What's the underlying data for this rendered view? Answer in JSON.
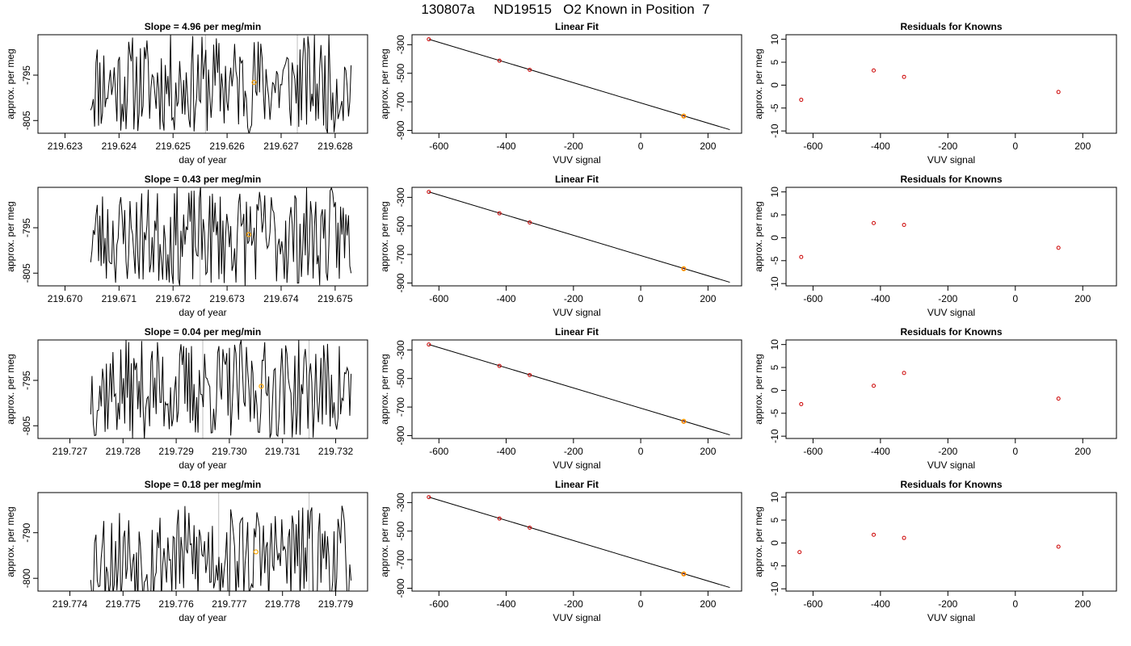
{
  "figure_title": "130807a     ND19515   O2 Known in Position  7",
  "colors": {
    "trace": "#000000",
    "marker_orange": "#ffa500",
    "marker_red": "#cc0000",
    "vline": "#bebebe"
  },
  "chart_data": [
    {
      "type": "line",
      "title": "Slope =  4.96  per meg/min",
      "xlabel": "day of year",
      "ylabel": "approx. per meg",
      "xticks": [
        "219.623",
        "219.624",
        "219.625",
        "219.626",
        "219.627",
        "219.628"
      ],
      "yticks": [
        "-795",
        "-805"
      ],
      "xlim": [
        219.6225,
        219.6286
      ],
      "ylim": [
        -807.8,
        -786.1
      ],
      "vlines": [
        219.6256,
        219.6273
      ],
      "marker": {
        "x": 219.6265,
        "y": -796.6
      },
      "seed": 11,
      "trace_mean": -797
    },
    {
      "type": "line",
      "title": "Linear Fit",
      "xlabel": "VUV signal",
      "ylabel": "approx. per meg",
      "xticks": [
        "-600",
        "-400",
        "-200",
        "0",
        "200"
      ],
      "yticks": [
        "-300",
        "-500",
        "-700",
        "-900"
      ],
      "xlim": [
        -680,
        300
      ],
      "ylim": [
        -920,
        -230
      ],
      "line": {
        "x0": -630,
        "y0": -262,
        "x1": 265,
        "y1": -895
      },
      "points": [
        {
          "x": -630,
          "y": -262
        },
        {
          "x": -420,
          "y": -412
        },
        {
          "x": -330,
          "y": -476
        },
        {
          "x": 128,
          "y": -800
        }
      ],
      "highlight": {
        "x": 128,
        "y": -800
      }
    },
    {
      "type": "scatter",
      "title": "Residuals for Knowns",
      "xlabel": "VUV signal",
      "ylabel": "approx. per meg",
      "xticks": [
        "-600",
        "-400",
        "-200",
        "0",
        "200"
      ],
      "yticks": [
        "10",
        "5",
        "0",
        "-5",
        "-10"
      ],
      "xlim": [
        -680,
        300
      ],
      "ylim": [
        -10.5,
        11
      ],
      "points": [
        {
          "x": -635,
          "y": -3.2
        },
        {
          "x": -420,
          "y": 3.2
        },
        {
          "x": -330,
          "y": 1.8
        },
        {
          "x": 128,
          "y": -1.5
        }
      ]
    },
    {
      "type": "line",
      "title": "Slope =  0.43  per meg/min",
      "xlabel": "day of year",
      "ylabel": "approx. per meg",
      "xticks": [
        "219.670",
        "219.671",
        "219.672",
        "219.673",
        "219.674",
        "219.675"
      ],
      "yticks": [
        "-795",
        "-805"
      ],
      "xlim": [
        219.6695,
        219.6756
      ],
      "ylim": [
        -807.8,
        -786.1
      ],
      "vlines": [
        219.6725
      ],
      "marker": {
        "x": 219.6734,
        "y": -796.5
      },
      "seed": 23,
      "trace_mean": -797
    },
    {
      "type": "line",
      "title": "Linear Fit",
      "xlabel": "VUV signal",
      "ylabel": "approx. per meg",
      "xticks": [
        "-600",
        "-400",
        "-200",
        "0",
        "200"
      ],
      "yticks": [
        "-300",
        "-500",
        "-700",
        "-900"
      ],
      "xlim": [
        -680,
        300
      ],
      "ylim": [
        -920,
        -230
      ],
      "line": {
        "x0": -630,
        "y0": -262,
        "x1": 265,
        "y1": -895
      },
      "points": [
        {
          "x": -630,
          "y": -262
        },
        {
          "x": -420,
          "y": -412
        },
        {
          "x": -330,
          "y": -476
        },
        {
          "x": 128,
          "y": -800
        }
      ],
      "highlight": {
        "x": 128,
        "y": -800
      }
    },
    {
      "type": "scatter",
      "title": "Residuals for Knowns",
      "xlabel": "VUV signal",
      "ylabel": "approx. per meg",
      "xticks": [
        "-600",
        "-400",
        "-200",
        "0",
        "200"
      ],
      "yticks": [
        "10",
        "5",
        "0",
        "-5",
        "-10"
      ],
      "xlim": [
        -680,
        300
      ],
      "ylim": [
        -10.5,
        11
      ],
      "points": [
        {
          "x": -635,
          "y": -4.2
        },
        {
          "x": -420,
          "y": 3.2
        },
        {
          "x": -330,
          "y": 2.8
        },
        {
          "x": 128,
          "y": -2.2
        }
      ]
    },
    {
      "type": "line",
      "title": "Slope =  0.04  per meg/min",
      "xlabel": "day of year",
      "ylabel": "approx. per meg",
      "xticks": [
        "219.727",
        "219.728",
        "219.729",
        "219.730",
        "219.731",
        "219.732"
      ],
      "yticks": [
        "-795",
        "-805"
      ],
      "xlim": [
        219.7264,
        219.7326
      ],
      "ylim": [
        -807.8,
        -786.1
      ],
      "vlines": [
        219.7295,
        219.7315
      ],
      "marker": {
        "x": 219.7306,
        "y": -796.3
      },
      "seed": 37,
      "trace_mean": -797
    },
    {
      "type": "line",
      "title": "Linear Fit",
      "xlabel": "VUV signal",
      "ylabel": "approx. per meg",
      "xticks": [
        "-600",
        "-400",
        "-200",
        "0",
        "200"
      ],
      "yticks": [
        "-300",
        "-500",
        "-700",
        "-900"
      ],
      "xlim": [
        -680,
        300
      ],
      "ylim": [
        -920,
        -230
      ],
      "line": {
        "x0": -630,
        "y0": -262,
        "x1": 265,
        "y1": -895
      },
      "points": [
        {
          "x": -630,
          "y": -262
        },
        {
          "x": -420,
          "y": -412
        },
        {
          "x": -330,
          "y": -476
        },
        {
          "x": 128,
          "y": -800
        }
      ],
      "highlight": {
        "x": 128,
        "y": -800
      }
    },
    {
      "type": "scatter",
      "title": "Residuals for Knowns",
      "xlabel": "VUV signal",
      "ylabel": "approx. per meg",
      "xticks": [
        "-600",
        "-400",
        "-200",
        "0",
        "200"
      ],
      "yticks": [
        "10",
        "5",
        "0",
        "-5",
        "-10"
      ],
      "xlim": [
        -680,
        300
      ],
      "ylim": [
        -10.5,
        11
      ],
      "points": [
        {
          "x": -635,
          "y": -3.0
        },
        {
          "x": -420,
          "y": 1.0
        },
        {
          "x": -330,
          "y": 3.8
        },
        {
          "x": 128,
          "y": -1.8
        }
      ]
    },
    {
      "type": "line",
      "title": "Slope =  0.18  per meg/min",
      "xlabel": "day of year",
      "ylabel": "approx. per meg",
      "xticks": [
        "219.774",
        "219.775",
        "219.776",
        "219.777",
        "219.778",
        "219.779"
      ],
      "yticks": [
        "-790",
        "-800"
      ],
      "xlim": [
        219.7734,
        219.7796
      ],
      "ylim": [
        -802.8,
        -781.2
      ],
      "vlines": [
        219.7768,
        219.7785
      ],
      "marker": {
        "x": 219.7775,
        "y": -794.2
      },
      "seed": 53,
      "trace_mean": -795
    },
    {
      "type": "line",
      "title": "Linear Fit",
      "xlabel": "VUV signal",
      "ylabel": "approx. per meg",
      "xticks": [
        "-600",
        "-400",
        "-200",
        "0",
        "200"
      ],
      "yticks": [
        "-300",
        "-500",
        "-700",
        "-900"
      ],
      "xlim": [
        -680,
        300
      ],
      "ylim": [
        -920,
        -230
      ],
      "line": {
        "x0": -630,
        "y0": -262,
        "x1": 265,
        "y1": -895
      },
      "points": [
        {
          "x": -630,
          "y": -262
        },
        {
          "x": -420,
          "y": -412
        },
        {
          "x": -330,
          "y": -476
        },
        {
          "x": 128,
          "y": -800
        }
      ],
      "highlight": {
        "x": 128,
        "y": -800
      }
    },
    {
      "type": "scatter",
      "title": "Residuals for Knowns",
      "xlabel": "VUV signal",
      "ylabel": "approx. per meg",
      "xticks": [
        "-600",
        "-400",
        "-200",
        "0",
        "200"
      ],
      "yticks": [
        "10",
        "5",
        "0",
        "-5",
        "-10"
      ],
      "xlim": [
        -680,
        300
      ],
      "ylim": [
        -10.5,
        11
      ],
      "points": [
        {
          "x": -640,
          "y": -2.0
        },
        {
          "x": -420,
          "y": 1.8
        },
        {
          "x": -330,
          "y": 1.1
        },
        {
          "x": 128,
          "y": -0.8
        }
      ]
    }
  ]
}
